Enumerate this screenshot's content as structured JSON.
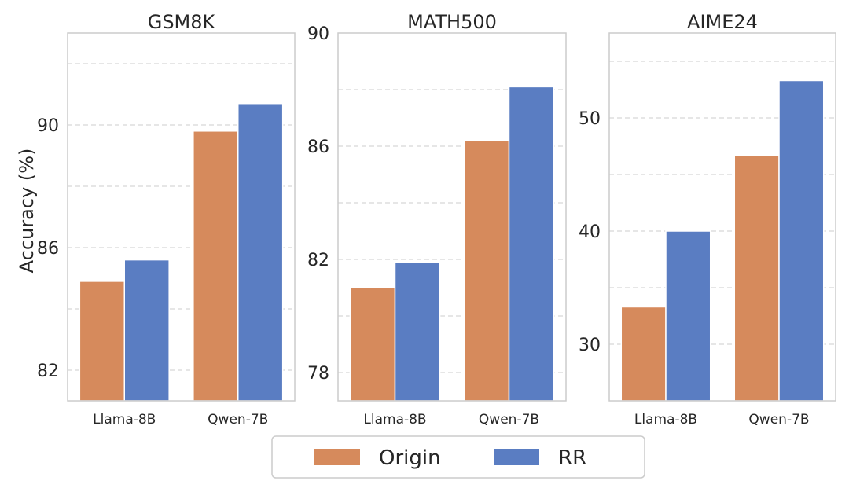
{
  "figure": {
    "ylabel": "Accuracy (%)",
    "legend": [
      {
        "label": "Origin",
        "color": "#d68a5c"
      },
      {
        "label": "RR",
        "color": "#5a7dc2"
      }
    ],
    "legend_position": "bottom-center"
  },
  "chart_data": [
    {
      "type": "bar",
      "title": "GSM8K",
      "categories": [
        "Llama-8B",
        "Qwen-7B"
      ],
      "series": [
        {
          "name": "Origin",
          "values": [
            84.9,
            89.8
          ]
        },
        {
          "name": "RR",
          "values": [
            85.6,
            90.7
          ]
        }
      ],
      "ylim": [
        81,
        93
      ],
      "yticks": [
        82,
        86,
        90
      ],
      "ytick_labels": [
        "82",
        "86",
        "90"
      ],
      "minor_grid": [
        84,
        88,
        92
      ],
      "grid": true
    },
    {
      "type": "bar",
      "title": "MATH500",
      "categories": [
        "Llama-8B",
        "Qwen-7B"
      ],
      "series": [
        {
          "name": "Origin",
          "values": [
            81.0,
            86.2
          ]
        },
        {
          "name": "RR",
          "values": [
            81.9,
            88.1
          ]
        }
      ],
      "ylim": [
        77,
        90
      ],
      "yticks": [
        78,
        82,
        86,
        90
      ],
      "ytick_labels": [
        "78",
        "82",
        "86",
        "90"
      ],
      "minor_grid": [
        80,
        84,
        88
      ],
      "grid": true
    },
    {
      "type": "bar",
      "title": "AIME24",
      "categories": [
        "Llama-8B",
        "Qwen-7B"
      ],
      "series": [
        {
          "name": "Origin",
          "values": [
            33.3,
            46.7
          ]
        },
        {
          "name": "RR",
          "values": [
            40.0,
            53.3
          ]
        }
      ],
      "ylim": [
        25,
        57.5
      ],
      "yticks": [
        30,
        40,
        50
      ],
      "ytick_labels": [
        "30",
        "40",
        "50"
      ],
      "minor_grid": [
        35,
        45,
        55
      ],
      "grid": true
    }
  ]
}
